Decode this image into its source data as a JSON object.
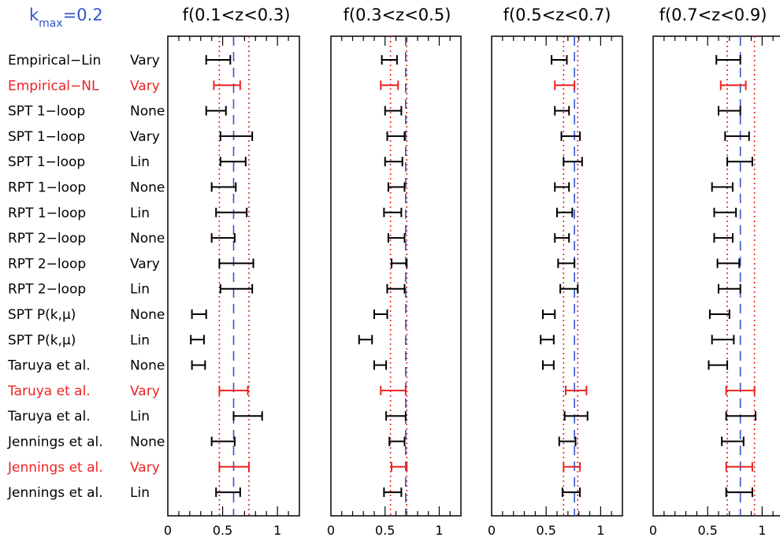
{
  "header": {
    "k_symbol": "k",
    "k_subscript": "max",
    "k_value": "=0.2",
    "k_color": "#3355cc"
  },
  "colors": {
    "default": "#000000",
    "highlight": "#ee2222",
    "fiducial_line": "#3355cc",
    "bound_line": "#ee2222"
  },
  "rows": [
    {
      "model": "Empirical−Lin",
      "variant": "Vary",
      "color": "default"
    },
    {
      "model": "Empirical−NL",
      "variant": "Vary",
      "color": "highlight"
    },
    {
      "model": "SPT 1−loop",
      "variant": "None",
      "color": "default"
    },
    {
      "model": "SPT 1−loop",
      "variant": "Vary",
      "color": "default"
    },
    {
      "model": "SPT 1−loop",
      "variant": "Lin",
      "color": "default"
    },
    {
      "model": "RPT 1−loop",
      "variant": "None",
      "color": "default"
    },
    {
      "model": "RPT 1−loop",
      "variant": "Lin",
      "color": "default"
    },
    {
      "model": "RPT 2−loop",
      "variant": "None",
      "color": "default"
    },
    {
      "model": "RPT 2−loop",
      "variant": "Vary",
      "color": "default"
    },
    {
      "model": "RPT 2−loop",
      "variant": "Lin",
      "color": "default"
    },
    {
      "model": "SPT P(k,μ)",
      "variant": "None",
      "color": "default"
    },
    {
      "model": "SPT P(k,μ)",
      "variant": "Lin",
      "color": "default"
    },
    {
      "model": "Taruya et al.",
      "variant": "None",
      "color": "default"
    },
    {
      "model": "Taruya et al.",
      "variant": "Vary",
      "color": "highlight"
    },
    {
      "model": "Taruya et al.",
      "variant": "Lin",
      "color": "default"
    },
    {
      "model": "Jennings et al.",
      "variant": "None",
      "color": "default"
    },
    {
      "model": "Jennings et al.",
      "variant": "Vary",
      "color": "highlight"
    },
    {
      "model": "Jennings et al.",
      "variant": "Lin",
      "color": "default"
    }
  ],
  "chart_data": [
    {
      "type": "errorbar",
      "title": "f(0.1<z<0.3)",
      "xlim": [
        0,
        1.2
      ],
      "ticks": [
        0,
        0.5,
        1
      ],
      "tick_labels": [
        "0",
        "0.5",
        "1"
      ],
      "fiducial": 0.6,
      "bounds": [
        0.47,
        0.74
      ],
      "intervals": [
        [
          0.35,
          0.57
        ],
        [
          0.42,
          0.66
        ],
        [
          0.35,
          0.53
        ],
        [
          0.48,
          0.77
        ],
        [
          0.48,
          0.71
        ],
        [
          0.4,
          0.62
        ],
        [
          0.44,
          0.72
        ],
        [
          0.4,
          0.61
        ],
        [
          0.47,
          0.78
        ],
        [
          0.48,
          0.77
        ],
        [
          0.22,
          0.35
        ],
        [
          0.21,
          0.33
        ],
        [
          0.22,
          0.34
        ],
        [
          0.47,
          0.73
        ],
        [
          0.6,
          0.86
        ],
        [
          0.4,
          0.61
        ],
        [
          0.47,
          0.74
        ],
        [
          0.44,
          0.66
        ]
      ]
    },
    {
      "type": "errorbar",
      "title": "f(0.3<z<0.5)",
      "xlim": [
        0,
        1.2
      ],
      "ticks": [
        0,
        0.5,
        1
      ],
      "tick_labels": [
        "0",
        "0.5",
        "1"
      ],
      "fiducial": 0.69,
      "bounds": [
        0.55,
        0.7
      ],
      "intervals": [
        [
          0.47,
          0.61
        ],
        [
          0.46,
          0.62
        ],
        [
          0.5,
          0.65
        ],
        [
          0.52,
          0.68
        ],
        [
          0.5,
          0.66
        ],
        [
          0.53,
          0.68
        ],
        [
          0.49,
          0.65
        ],
        [
          0.53,
          0.68
        ],
        [
          0.56,
          0.7
        ],
        [
          0.52,
          0.68
        ],
        [
          0.4,
          0.52
        ],
        [
          0.26,
          0.38
        ],
        [
          0.4,
          0.51
        ],
        [
          0.46,
          0.69
        ],
        [
          0.51,
          0.69
        ],
        [
          0.54,
          0.68
        ],
        [
          0.56,
          0.7
        ],
        [
          0.49,
          0.65
        ]
      ]
    },
    {
      "type": "errorbar",
      "title": "f(0.5<z<0.7)",
      "xlim": [
        0,
        1.2
      ],
      "ticks": [
        0,
        0.5,
        1
      ],
      "tick_labels": [
        "0",
        "0.5",
        "1"
      ],
      "fiducial": 0.76,
      "bounds": [
        0.66,
        0.79
      ],
      "intervals": [
        [
          0.55,
          0.69
        ],
        [
          0.58,
          0.76
        ],
        [
          0.58,
          0.71
        ],
        [
          0.64,
          0.81
        ],
        [
          0.66,
          0.83
        ],
        [
          0.58,
          0.71
        ],
        [
          0.6,
          0.74
        ],
        [
          0.58,
          0.71
        ],
        [
          0.61,
          0.76
        ],
        [
          0.63,
          0.79
        ],
        [
          0.47,
          0.58
        ],
        [
          0.45,
          0.57
        ],
        [
          0.47,
          0.57
        ],
        [
          0.68,
          0.87
        ],
        [
          0.67,
          0.88
        ],
        [
          0.62,
          0.77
        ],
        [
          0.66,
          0.81
        ],
        [
          0.65,
          0.81
        ]
      ]
    },
    {
      "type": "errorbar",
      "title": "f(0.7<z<0.9)",
      "xlim": [
        0,
        1.2
      ],
      "ticks": [
        0,
        0.5,
        1
      ],
      "tick_labels": [
        "0",
        "0.5",
        "1"
      ],
      "fiducial": 0.8,
      "bounds": [
        0.68,
        0.93
      ],
      "intervals": [
        [
          0.58,
          0.8
        ],
        [
          0.62,
          0.85
        ],
        [
          0.6,
          0.8
        ],
        [
          0.66,
          0.88
        ],
        [
          0.68,
          0.91
        ],
        [
          0.54,
          0.73
        ],
        [
          0.56,
          0.76
        ],
        [
          0.56,
          0.73
        ],
        [
          0.59,
          0.79
        ],
        [
          0.6,
          0.8
        ],
        [
          0.52,
          0.7
        ],
        [
          0.54,
          0.74
        ],
        [
          0.51,
          0.68
        ],
        [
          0.67,
          0.93
        ],
        [
          0.67,
          0.94
        ],
        [
          0.63,
          0.83
        ],
        [
          0.67,
          0.91
        ],
        [
          0.67,
          0.91
        ]
      ]
    }
  ]
}
